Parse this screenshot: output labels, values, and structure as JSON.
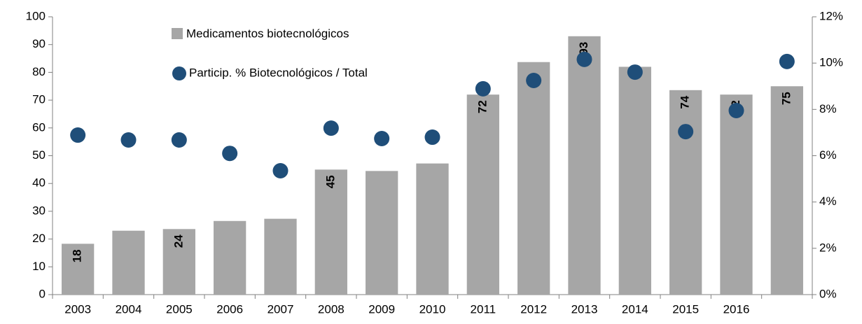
{
  "chart_data": {
    "type": "bar",
    "categories": [
      "2003",
      "2004",
      "2005",
      "2006",
      "2007",
      "2008",
      "2009",
      "2010",
      "2011",
      "2012",
      "2013",
      "2014",
      "2015",
      "2016",
      null
    ],
    "series": [
      {
        "name": "Medicamentos biotecnológicos",
        "type": "bar",
        "color": "#a6a6a6",
        "values": [
          18.3,
          23,
          23.6,
          26.5,
          27.3,
          45,
          44.5,
          47.2,
          72,
          83.7,
          93,
          82,
          73.6,
          72,
          75
        ],
        "value_labels": [
          "18",
          null,
          "24",
          null,
          null,
          "45",
          null,
          null,
          "72",
          null,
          "93",
          null,
          "74",
          "72",
          "75"
        ]
      },
      {
        "name": "Particip. % Biotecnológicos / Total",
        "type": "scatter",
        "color": "#1f4e79",
        "axis": "y2",
        "values": [
          6.89,
          6.68,
          6.68,
          6.1,
          5.35,
          7.19,
          6.74,
          6.8,
          8.89,
          9.25,
          10.16,
          9.61,
          7.04,
          7.95,
          10.07
        ]
      }
    ],
    "ylim": [
      0,
      100
    ],
    "yticks": [
      0,
      10,
      20,
      30,
      40,
      50,
      60,
      70,
      80,
      90,
      100
    ],
    "y2lim": [
      0,
      12
    ],
    "y2ticks": [
      {
        "value": 0,
        "label": "0%"
      },
      {
        "value": 2,
        "label": "2%"
      },
      {
        "value": 4,
        "label": "4%"
      },
      {
        "value": 6,
        "label": "6%"
      },
      {
        "value": 8,
        "label": "8%"
      },
      {
        "value": 10,
        "label": "10%"
      },
      {
        "value": 12,
        "label": "12%"
      }
    ],
    "grid": false
  }
}
